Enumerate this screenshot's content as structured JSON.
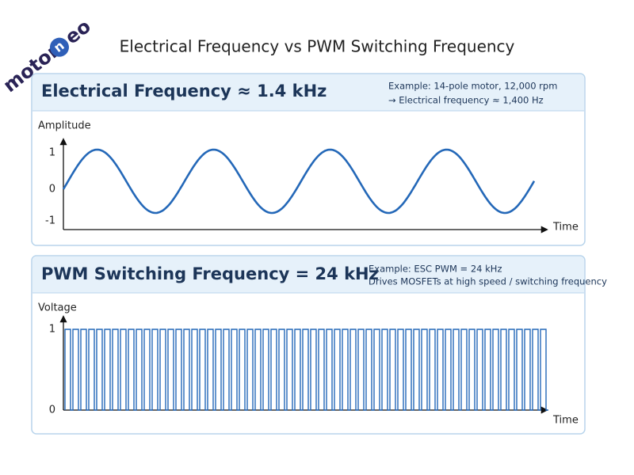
{
  "logo": {
    "text_before": "motor",
    "icon_letter": "n",
    "text_after": "eo"
  },
  "title": "Electrical Frequency vs PWM Switching Frequency",
  "panels": [
    {
      "heading": "Electrical Frequency ≈ 1.4 kHz",
      "notes": [
        "Example: 14-pole motor, 12,000 rpm",
        "→ Electrical frequency ≈ 1,400 Hz"
      ],
      "y_label": "Amplitude",
      "x_label": "Time",
      "ticks": [
        "1",
        "0",
        "-1"
      ]
    },
    {
      "heading": "PWM Switching Frequency = 24 kHz",
      "notes": [
        "Example: ESC PWM = 24 kHz",
        "Drives MOSFETs at high speed / switching frequency"
      ],
      "y_label": "Voltage",
      "x_label": "Time",
      "ticks": [
        "1",
        "0"
      ]
    }
  ]
}
